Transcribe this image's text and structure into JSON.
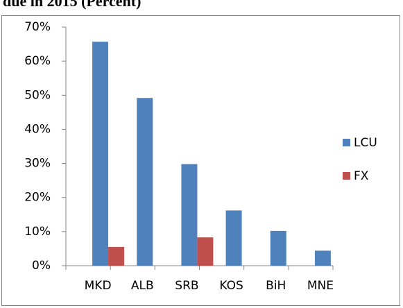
{
  "chart_data": {
    "type": "bar",
    "title": "due in 2015 (Percent)",
    "categories": [
      "MKD",
      "ALB",
      "SRB",
      "KOS",
      "BiH",
      "MNE"
    ],
    "series": [
      {
        "name": "LCU",
        "color": "#4f81bd",
        "values": [
          65.7,
          49.2,
          29.8,
          16.2,
          10.2,
          4.4
        ]
      },
      {
        "name": "FX",
        "color": "#c0504d",
        "values": [
          5.5,
          null,
          8.3,
          null,
          null,
          null
        ]
      }
    ],
    "ylim": [
      0,
      70
    ],
    "yticks": [
      {
        "value": 0,
        "label": "0%"
      },
      {
        "value": 10,
        "label": "10%"
      },
      {
        "value": 20,
        "label": "20%"
      },
      {
        "value": 30,
        "label": "30%"
      },
      {
        "value": 40,
        "label": "40%"
      },
      {
        "value": 50,
        "label": "50%"
      },
      {
        "value": 60,
        "label": "60%"
      },
      {
        "value": 70,
        "label": "70%"
      }
    ],
    "legend": "right"
  }
}
